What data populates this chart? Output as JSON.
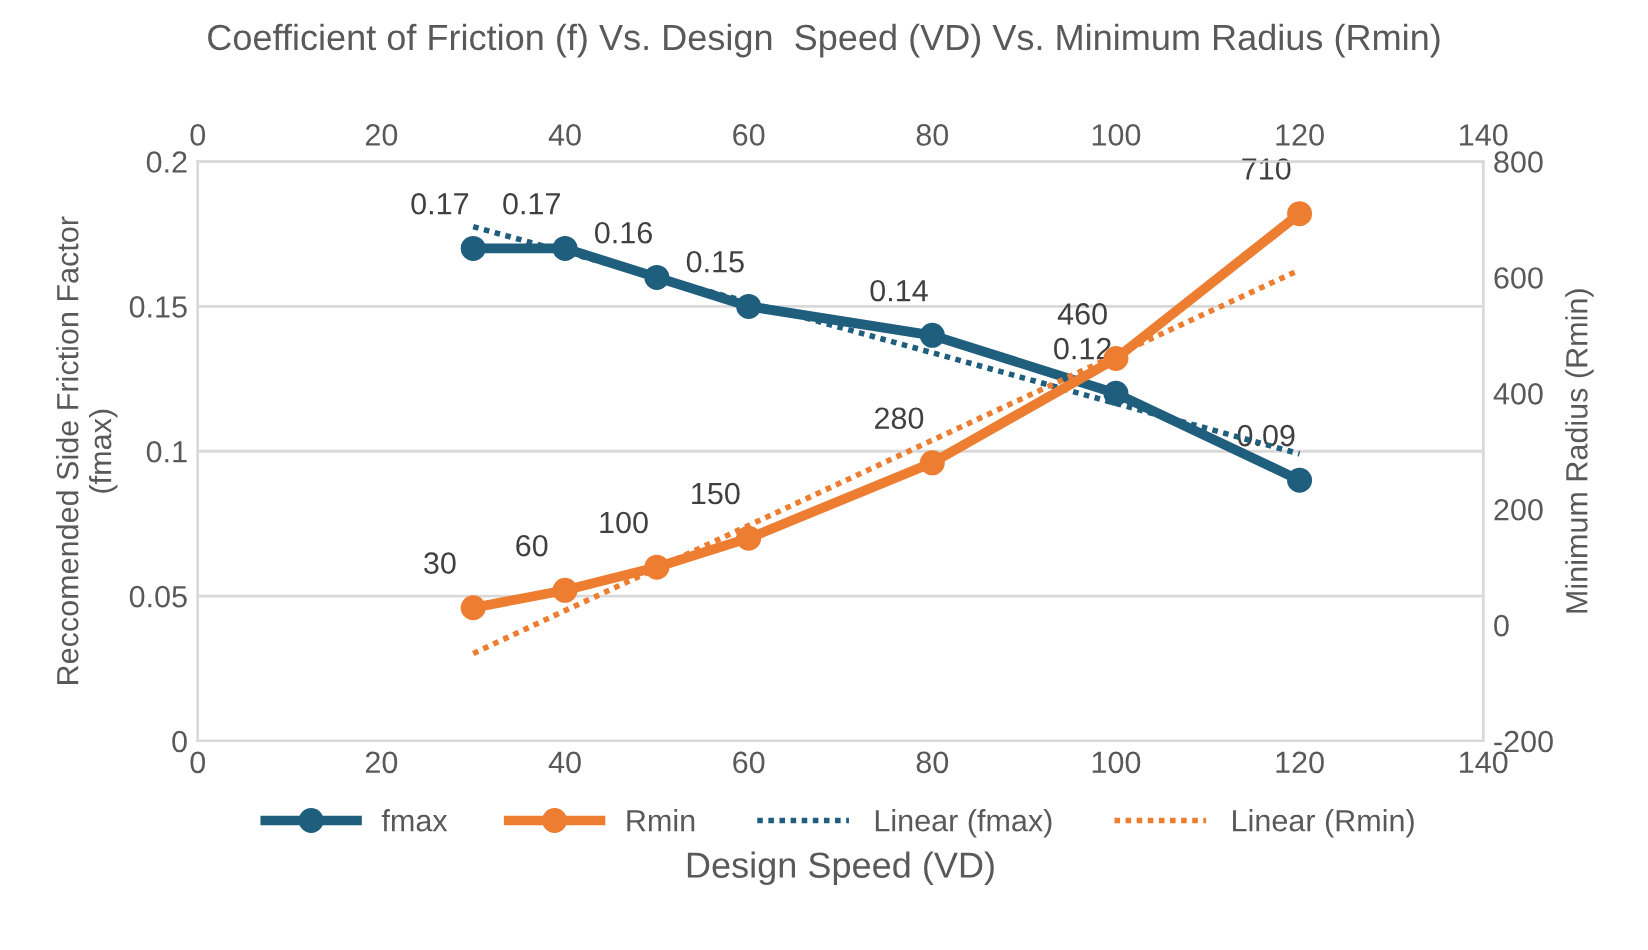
{
  "chart_data": {
    "type": "line",
    "title": "Coefficient of Friction (f) Vs. Design  Speed (VD) Vs. Minimum Radius (Rmin)",
    "xlabel": "Design Speed (VD)",
    "ylabel": "Reccomended Side Friction Factor\n(fmax)",
    "y2label": "Minimum Radius (Rmin)",
    "x": [
      30,
      40,
      50,
      60,
      80,
      100,
      120
    ],
    "series": [
      {
        "name": "fmax",
        "color": "#1f5f7d",
        "values": [
          0.17,
          0.17,
          0.16,
          0.15,
          0.14,
          0.12,
          0.09
        ],
        "value_labels": [
          "0.17",
          "0.17",
          "0.16",
          "0.15",
          "0.14",
          "0.12",
          "0.09"
        ],
        "marker": "circle",
        "line_style": "solid"
      },
      {
        "name": "Rmin",
        "color": "#ed7d31",
        "values": [
          30,
          60,
          100,
          150,
          280,
          460,
          710
        ],
        "value_labels": [
          "30",
          "60",
          "100",
          "150",
          "280",
          "460",
          "710"
        ],
        "axis": "y2",
        "marker": "circle",
        "line_style": "solid"
      },
      {
        "name": "Linear (fmax)",
        "color": "#1f5f7d",
        "values": [
          0.1775,
          0.1688,
          0.1601,
          0.1514,
          0.134,
          0.1165,
          0.0991
        ],
        "marker": "none",
        "line_style": "dotted"
      },
      {
        "name": "Linear (Rmin)",
        "color": "#ed7d31",
        "values": [
          -49,
          25,
          98,
          172,
          319,
          466,
          613
        ],
        "axis": "y2",
        "marker": "none",
        "line_style": "dotted"
      }
    ],
    "xlim": [
      0,
      140
    ],
    "xticks": [
      0,
      20,
      40,
      60,
      80,
      100,
      120,
      140
    ],
    "x2lim": [
      0,
      140
    ],
    "x2ticks": [
      0,
      20,
      40,
      60,
      80,
      100,
      120,
      140
    ],
    "ylim": [
      0,
      0.2
    ],
    "yticks": [
      0,
      0.05,
      0.1,
      0.15,
      0.2
    ],
    "y2lim": [
      -200,
      800
    ],
    "y2ticks": [
      -200,
      0,
      200,
      400,
      600,
      800
    ],
    "grid": "y",
    "legend": "bottom"
  }
}
